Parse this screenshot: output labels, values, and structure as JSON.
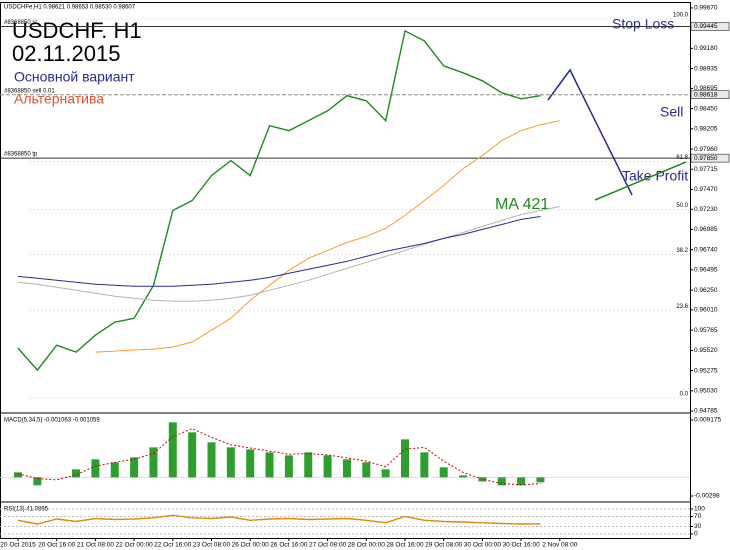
{
  "header": "USDCHFe,H1  0.98621 0.98653 0.98530 0.98607",
  "chart_data": [
    {
      "type": "line",
      "title": "USDCHF. H1",
      "subtitle": "02.11.2015",
      "annotations": [
        "Основной вариант",
        "Альтернатива",
        "Stop Loss",
        "Sell",
        "Take Profit",
        "MA 421"
      ],
      "categories": [
        "20 Oct 2015",
        null,
        "20 Oct 16:00",
        null,
        "21 Oct 08:00",
        null,
        "22 Oct 00:00",
        null,
        "22 Oct 16:00",
        null,
        "23 Oct 08:00",
        null,
        "26 Oct 00:00",
        null,
        "26 Oct 16:00",
        null,
        "27 Oct 08:00",
        null,
        "28 Oct 00:00",
        null,
        "28 Oct 16:00",
        null,
        "29 Oct 08:00",
        null,
        "30 Oct 00:00",
        null,
        "30 Oct 16:00",
        null,
        "2 Nov 08:00"
      ],
      "series": [
        {
          "color": "#1f8a1f",
          "values": [
            0.95547,
            0.95281,
            0.95583,
            0.95499,
            0.95704,
            0.95861,
            0.95909,
            0.96309,
            0.97215,
            0.97336,
            0.97638,
            0.9782,
            0.97638,
            0.98243,
            0.98182,
            0.98303,
            0.98424,
            0.98606,
            0.98545,
            0.98303,
            0.99392,
            0.99271,
            0.98968,
            0.98884,
            0.98787,
            0.98642,
            0.98569,
            0.98606,
            null
          ]
        },
        {
          "color": "#f0a030",
          "values": [
            null,
            null,
            null,
            null,
            0.95499,
            0.95511,
            0.95524,
            0.95536,
            0.9556,
            0.95621,
            0.95765,
            0.9591,
            0.96127,
            0.96309,
            0.9649,
            0.96635,
            0.96732,
            0.96828,
            0.96901,
            0.96998,
            0.97155,
            0.97336,
            0.97518,
            0.97723,
            0.9788,
            0.98062,
            0.98183,
            0.98255,
            0.98303
          ]
        },
        {
          "color": "#b4b4b4",
          "values": [
            0.96345,
            0.96321,
            0.96284,
            0.96248,
            0.96212,
            0.96176,
            0.96151,
            0.96127,
            0.96115,
            0.96115,
            0.96127,
            0.96151,
            0.96188,
            0.96248,
            0.96309,
            0.96369,
            0.96442,
            0.96514,
            0.96587,
            0.96659,
            0.96732,
            0.96804,
            0.96877,
            0.96949,
            0.97022,
            0.97094,
            0.97167,
            0.97215,
            0.97264
          ]
        },
        {
          "color": "#2b2b8f",
          "values": [
            0.96417,
            0.96393,
            0.96369,
            0.96345,
            0.96321,
            0.96309,
            0.96296,
            0.96296,
            0.96296,
            0.96309,
            0.96321,
            0.96345,
            0.96369,
            0.96405,
            0.96454,
            0.96502,
            0.9655,
            0.96599,
            0.96659,
            0.9672,
            0.96768,
            0.96816,
            0.96877,
            0.96925,
            0.96986,
            0.97046,
            0.97107,
            0.97143,
            null
          ]
        }
      ],
      "ylim": [
        0.94761,
        0.9973
      ],
      "yticks": [
        {
          "value": 0.9967,
          "label": "0.99670"
        },
        {
          "value": 0.9918,
          "label": "0.99180"
        },
        0.98935,
        0.98695,
        {
          "value": 0.9845,
          "label": "0.98450"
        },
        0.98205,
        {
          "value": 0.9796,
          "label": "0.97960"
        },
        0.97715,
        {
          "value": 0.9747,
          "label": "0.97470"
        },
        {
          "value": 0.9723,
          "label": "0.97230"
        },
        0.96985,
        {
          "value": 0.9674,
          "label": "0.96740"
        },
        0.96495,
        {
          "value": 0.9625,
          "label": "0.96250"
        },
        {
          "value": 0.9601,
          "label": "0.96010"
        },
        0.95765,
        {
          "value": 0.9552,
          "label": "0.95520"
        },
        0.95275,
        {
          "value": 0.9503,
          "label": "0.95030"
        },
        0.94785
      ],
      "levels": [
        {
          "label": "#8368850 sl",
          "value": 0.99445
        },
        {
          "label": "#8368850 sell 0.01",
          "value": 0.98618
        },
        {
          "label": "#8368850 tp",
          "value": {
            "value": 0.9785,
            "label": "0.97850"
          }
        }
      ],
      "fib": [
        {
          "level": "100.0",
          "price": 0.99537
        },
        {
          "level": 61.8,
          "price": 0.97808
        },
        {
          "level": "50.0",
          "price": 0.97227
        },
        {
          "level": 38.2,
          "price": 0.96683
        },
        {
          "level": 23.6,
          "price": 0.96006
        },
        {
          "level": "0.0",
          "price": 0.94942
        }
      ]
    },
    {
      "type": "bar",
      "title": "MACD(5,34,5) -0.001063 -0.001059",
      "color": "#2e9e2e",
      "values": [
        0.0008,
        -0.00128,
        0,
        0.00128,
        0.00288,
        0.0024,
        0.0032,
        0.0048,
        0.0088,
        0.0072,
        0.0056,
        0.0048,
        0.00448,
        0.004,
        0.00352,
        0.004,
        0.00352,
        0.00288,
        0.0024,
        0.00128,
        0.00608,
        0.004,
        0.0016,
        0.00032,
        -0.00064,
        -0.00128,
        -0.00128,
        -0.0008,
        null
      ],
      "signal": {
        "color": "#cc0000",
        "values": [
          0.0006,
          -0.0002,
          -0.0004,
          0.0004,
          0.0018,
          0.0024,
          0.0029,
          0.0038,
          0.0065,
          0.0078,
          0.0064,
          0.0052,
          0.0047,
          0.0042,
          0.0037,
          0.0038,
          0.0036,
          0.0031,
          0.0026,
          0.0017,
          0.0045,
          0.0048,
          0.0026,
          0.0008,
          -0.0003,
          -0.001,
          -0.0012,
          -0.001,
          null
        ]
      },
      "ylim": [
        -0.00362,
        0.010295
      ],
      "yticks": [
        0.009175,
        -0.00298
      ]
    },
    {
      "type": "line",
      "title": "RSI(13) 41.0895",
      "series": [
        {
          "color": "#e08a00",
          "values": [
            55,
            40,
            60,
            50,
            62,
            58,
            60,
            65,
            75,
            65,
            62,
            68,
            55,
            60,
            62,
            58,
            60,
            62,
            55,
            45,
            70,
            55,
            50,
            48,
            45,
            42,
            40,
            41,
            null
          ]
        }
      ],
      "ylim": [
        -16,
        124
      ],
      "yticks": [
        100,
        70,
        30,
        0
      ]
    }
  ]
}
